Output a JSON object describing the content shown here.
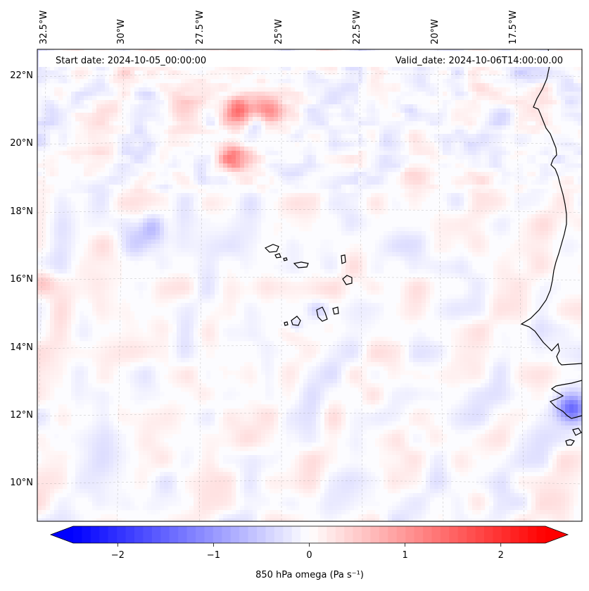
{
  "map": {
    "start_label": "Start date: 2024-10-05_00:00:00",
    "valid_label": "Valid_date: 2024-10-06T14:00:00.00",
    "lon_labels": [
      "32.5°W",
      "30°W",
      "27.5°W",
      "25°W",
      "22.5°W",
      "20°W",
      "17.5°W"
    ],
    "lat_labels": [
      "22°N",
      "20°N",
      "18°N",
      "16°N",
      "14°N",
      "12°N",
      "10°N"
    ],
    "colorbar": {
      "label": "850 hPa omega (Pa s⁻¹)",
      "ticks": [
        "−2",
        "−1",
        "0",
        "1",
        "2"
      ],
      "tick_values": [
        -2,
        -1,
        0,
        1,
        2
      ],
      "range": [
        -2.7,
        2.7
      ],
      "colormap": "bwr",
      "extend": "both"
    },
    "colors": {
      "negative": "#0000ff",
      "zero": "#ffffff",
      "positive": "#ff0000",
      "coast": "#000000"
    },
    "gridlines": true
  }
}
